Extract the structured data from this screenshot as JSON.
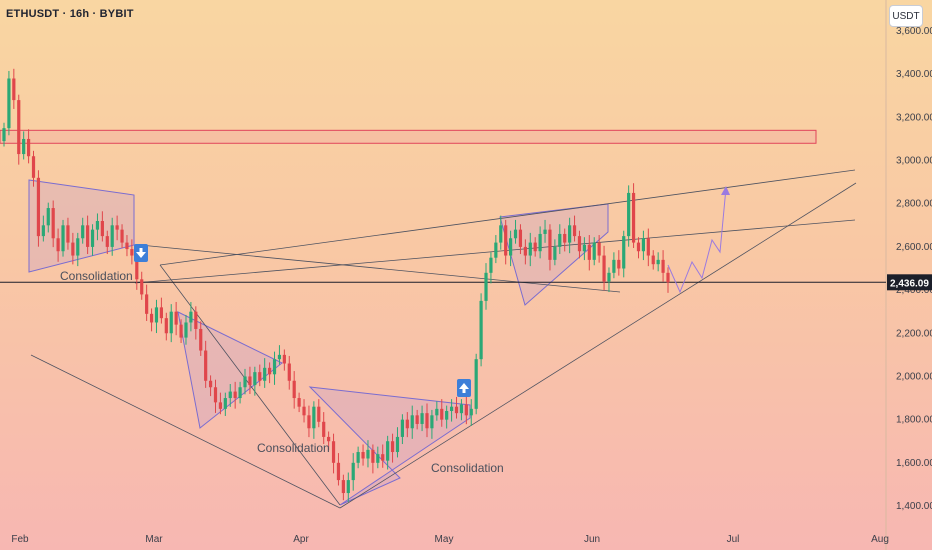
{
  "header": {
    "symbol": "ETHUSDT · 16h · BYBIT",
    "currency_button": "USDT"
  },
  "chart_data": {
    "type": "candlestick",
    "y_axis": {
      "ticks": [
        "3,600.00",
        "3,400.00",
        "3,200.00",
        "3,000.00",
        "2,800.00",
        "2,600.00",
        "2,400.00",
        "2,200.00",
        "2,000.00",
        "1,800.00",
        "1,600.00",
        "1,400.00"
      ],
      "ylim": [
        1380,
        3620
      ]
    },
    "x_axis": {
      "ticks": [
        "Feb",
        "Mar",
        "Apr",
        "May",
        "Jun",
        "Jul",
        "Aug"
      ]
    },
    "current_price": {
      "value": 2436.09,
      "label": "2,436.09",
      "color": "#1c1f2a"
    },
    "colors": {
      "up": "#2aa876",
      "down": "#e0464b",
      "zone_stroke": "#e0445a",
      "triangle_fill": "#c9a0c8",
      "triangle_stroke": "#7a6cd0"
    },
    "annotations": [
      "Consolidation",
      "Consolidation",
      "Consolidation"
    ],
    "markers": [
      {
        "date": "Mar 2",
        "direction": "down",
        "icon": "arrow-down-icon"
      },
      {
        "date": "May 2",
        "direction": "up",
        "icon": "arrow-up-icon"
      }
    ],
    "resistance_zone": {
      "from": 3080,
      "to": 3140
    },
    "series": [
      {
        "values": [
          3150,
          3380,
          3280,
          3030,
          3100,
          3020,
          2920,
          2650,
          2700,
          2780,
          2640,
          2580,
          2700,
          2620,
          2560,
          2640,
          2700,
          2600,
          2680,
          2720,
          2650,
          2600,
          2700,
          2680,
          2620,
          2590,
          2560,
          2450,
          2380,
          2290,
          2250,
          2320,
          2270,
          2200,
          2300,
          2240,
          2180,
          2250,
          2300,
          2220,
          2120,
          1980,
          1950,
          1880,
          1850,
          1900,
          1930,
          1900,
          1950,
          2000,
          1960,
          2020,
          1980,
          2040,
          2010,
          2080,
          2100,
          2060,
          1980,
          1900,
          1860,
          1820,
          1760,
          1860,
          1790,
          1720,
          1700,
          1600,
          1520,
          1460,
          1520,
          1600,
          1650,
          1620,
          1660,
          1600,
          1640,
          1610,
          1700,
          1650,
          1720,
          1800,
          1760,
          1820,
          1780,
          1830,
          1760,
          1820,
          1850,
          1800,
          1840,
          1860,
          1830,
          1870,
          1820,
          1850,
          2080,
          2350,
          2480,
          2550,
          2620,
          2700,
          2560,
          2640,
          2680,
          2600,
          2560,
          2620,
          2580,
          2660,
          2680,
          2540,
          2600,
          2660,
          2620,
          2700,
          2650,
          2580,
          2610,
          2540,
          2620,
          2560,
          2440,
          2480,
          2540,
          2500,
          2650,
          2850,
          2620,
          2580,
          2640,
          2560,
          2520,
          2540,
          2480,
          2436
        ]
      }
    ]
  }
}
